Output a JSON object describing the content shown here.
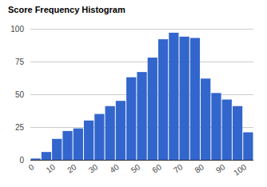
{
  "chart_data": {
    "type": "histogram",
    "title": "Score Frequency Histogram",
    "bins": [
      0,
      5,
      10,
      15,
      20,
      25,
      30,
      35,
      40,
      45,
      50,
      55,
      60,
      65,
      70,
      75,
      80,
      85,
      90,
      95,
      100,
      105
    ],
    "values": [
      1,
      6,
      16,
      22,
      24,
      30,
      35,
      41,
      45,
      63,
      67,
      78,
      92,
      97,
      94,
      93,
      62,
      51,
      46,
      41,
      21
    ],
    "color": "#3366cc",
    "xlim": [
      0,
      105
    ],
    "xticks": [
      0,
      10,
      20,
      30,
      40,
      50,
      60,
      70,
      80,
      90,
      100
    ],
    "ylim": [
      0,
      100
    ],
    "yticks": [
      0,
      25,
      50,
      75,
      100
    ],
    "grid": true
  }
}
